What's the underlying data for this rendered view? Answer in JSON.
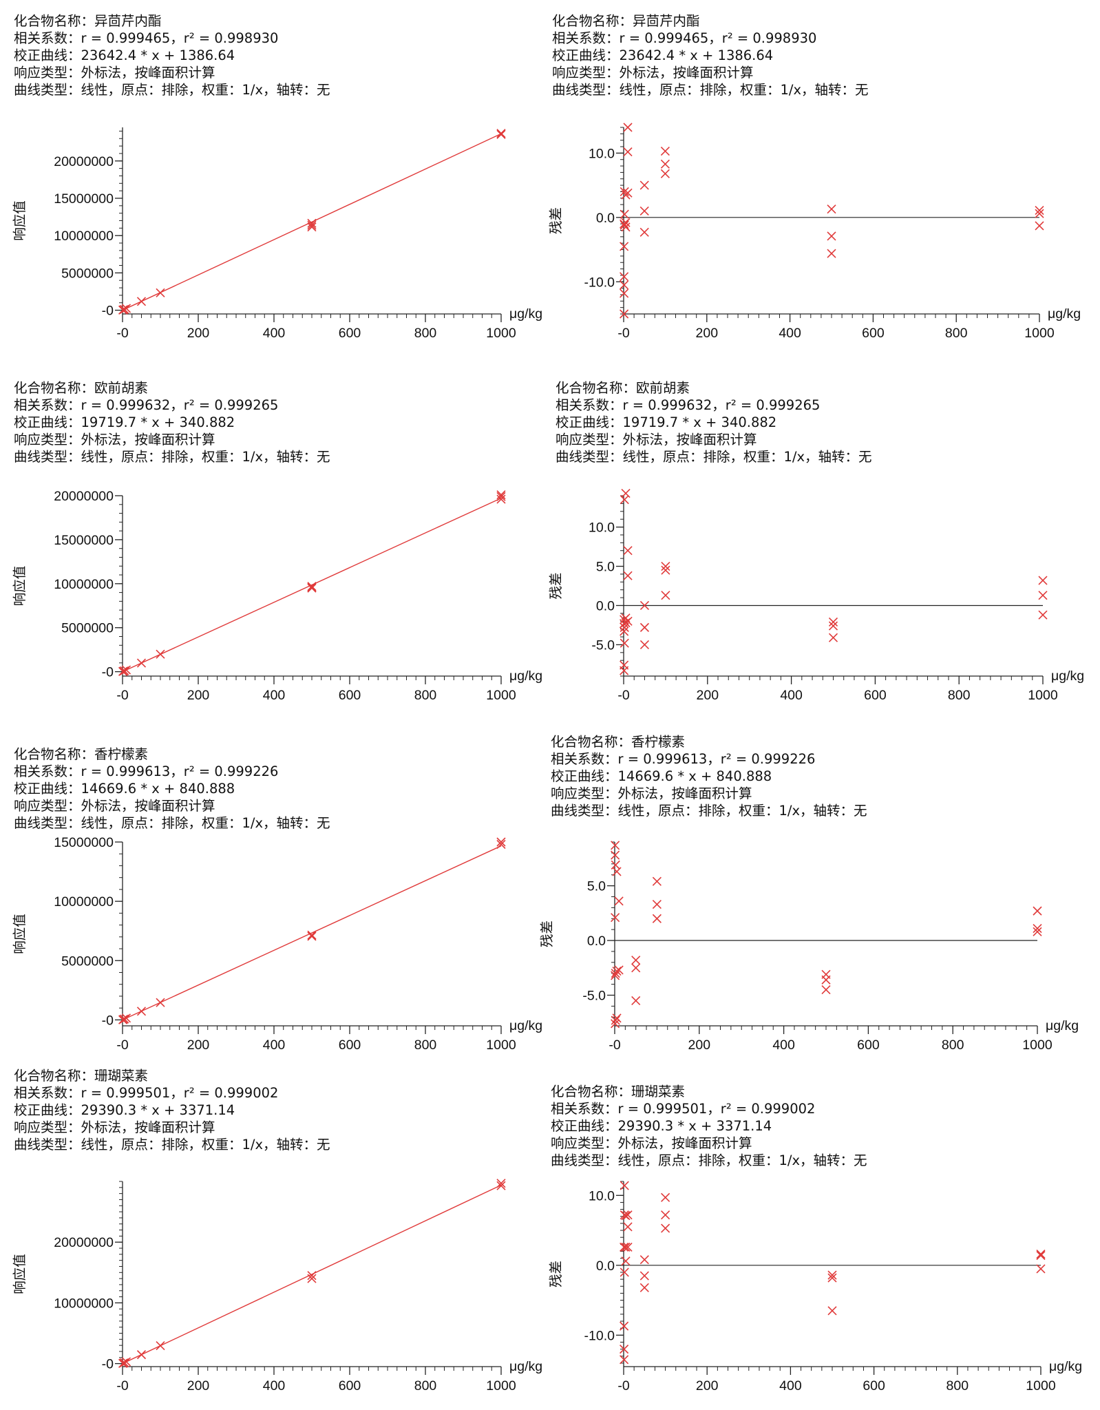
{
  "chart_data": [
    {
      "type": "scatter",
      "compound": "化合物名称：异茴芹内酯",
      "corr": "相关系数：r = 0.999465，r² = 0.998930",
      "curve": "校正曲线：23642.4 * x + 1386.64",
      "response": "响应类型：外标法，按峰面积计算",
      "curve_type": "曲线类型：线性，原点：排除，权重：1/x，轴转：无",
      "slope": 23642.4,
      "intercept": 1386.64,
      "xunit": "μg/kg",
      "ylabel": "响应值",
      "xlim": [
        0,
        1000
      ],
      "xticks": [
        "-0",
        "200",
        "400",
        "600",
        "800",
        "1000"
      ],
      "ylim": [
        -500000,
        24500000
      ],
      "yticks": [
        {
          "v": 0,
          "label": "-0"
        },
        {
          "v": 5000000,
          "label": "5000000"
        },
        {
          "v": 10000000,
          "label": "10000000"
        },
        {
          "v": 15000000,
          "label": "15000000"
        },
        {
          "v": 20000000,
          "label": "20000000"
        }
      ],
      "x": [
        1,
        2,
        5,
        10,
        50,
        100,
        500,
        500,
        500,
        1000,
        1000
      ],
      "y": [
        25000,
        50000,
        120000,
        240000,
        1180000,
        2330000,
        11400000,
        11650000,
        11150000,
        23550000,
        23700000
      ]
    },
    {
      "type": "scatter",
      "compound": "化合物名称：异茴芹内酯",
      "corr": "相关系数：r = 0.999465，r² = 0.998930",
      "curve": "校正曲线：23642.4 * x + 1386.64",
      "response": "响应类型：外标法，按峰面积计算",
      "curve_type": "曲线类型：线性，原点：排除，权重：1/x，轴转：无",
      "xunit": "μg/kg",
      "ylabel": "残差",
      "xlim": [
        0,
        1000
      ],
      "xticks": [
        "-0",
        "200",
        "400",
        "600",
        "800",
        "1000"
      ],
      "ylim": [
        -15,
        14
      ],
      "yticks": [
        {
          "v": -10,
          "label": "-10.0"
        },
        {
          "v": 0,
          "label": "0.0"
        },
        {
          "v": 10,
          "label": "10.0"
        }
      ],
      "x": [
        1,
        1,
        1,
        1,
        1,
        1,
        2,
        2,
        2,
        5,
        5,
        5,
        10,
        10,
        10,
        50,
        50,
        50,
        100,
        100,
        100,
        500,
        500,
        500,
        1000,
        1000,
        1000
      ],
      "y": [
        -15,
        -11.8,
        -10.5,
        -9.2,
        -4.5,
        -1,
        4,
        0.5,
        -1.2,
        3.5,
        -0.8,
        -1.5,
        14,
        10.2,
        3.8,
        5,
        1,
        -2.3,
        10.3,
        8.3,
        6.8,
        1.3,
        -2.9,
        -5.6,
        1.1,
        0.6,
        -1.3
      ]
    },
    {
      "type": "scatter",
      "compound": "化合物名称：欧前胡素",
      "corr": "相关系数：r = 0.999632，r² = 0.999265",
      "curve": "校正曲线：19719.7 * x + 340.882",
      "response": "响应类型：外标法，按峰面积计算",
      "curve_type": "曲线类型：线性，原点：排除，权重：1/x，轴转：无",
      "slope": 19719.7,
      "intercept": 340.882,
      "xunit": "μg/kg",
      "ylabel": "响应值",
      "xlim": [
        0,
        1000
      ],
      "xticks": [
        "-0",
        "200",
        "400",
        "600",
        "800",
        "1000"
      ],
      "ylim": [
        -500000,
        20000000
      ],
      "yticks": [
        {
          "v": 0,
          "label": "-0"
        },
        {
          "v": 5000000,
          "label": "5000000"
        },
        {
          "v": 10000000,
          "label": "10000000"
        },
        {
          "v": 15000000,
          "label": "15000000"
        },
        {
          "v": 20000000,
          "label": "20000000"
        }
      ],
      "x": [
        1,
        2,
        5,
        10,
        50,
        100,
        500,
        500,
        500,
        1000,
        1000,
        1000
      ],
      "y": [
        20000,
        40000,
        100000,
        200000,
        980000,
        1990000,
        9500000,
        9700000,
        9600000,
        19600000,
        19900000,
        20100000
      ]
    },
    {
      "type": "scatter",
      "compound": "化合物名称：欧前胡素",
      "corr": "相关系数：r = 0.999632，r² = 0.999265",
      "curve": "校正曲线：19719.7 * x + 340.882",
      "response": "响应类型：外标法，按峰面积计算",
      "curve_type": "曲线类型：线性，原点：排除，权重：1/x，轴转：无",
      "xunit": "μg/kg",
      "ylabel": "残差",
      "xlim": [
        0,
        1000
      ],
      "xticks": [
        "-0",
        "200",
        "400",
        "600",
        "800",
        "1000"
      ],
      "ylim": [
        -9,
        14
      ],
      "yticks": [
        {
          "v": -5,
          "label": "-5.0"
        },
        {
          "v": 0,
          "label": "0.0"
        },
        {
          "v": 5,
          "label": "5.0"
        },
        {
          "v": 10,
          "label": "10.0"
        }
      ],
      "x": [
        1,
        1,
        1,
        1,
        1,
        2,
        2,
        2,
        5,
        5,
        5,
        10,
        10,
        10,
        50,
        50,
        50,
        100,
        100,
        100,
        500,
        500,
        500,
        1000,
        1000,
        1000
      ],
      "y": [
        -8.3,
        -7.6,
        -3.3,
        -2.3,
        -1.8,
        13.5,
        -2.8,
        -4.8,
        14.3,
        -1.6,
        -2.2,
        7,
        3.8,
        -2,
        0,
        -2.8,
        -5,
        5,
        4.5,
        1.3,
        -2.1,
        -2.6,
        -4.1,
        3.2,
        1.3,
        -1.2
      ]
    },
    {
      "type": "scatter",
      "compound": "化合物名称：香柠檬素",
      "corr": "相关系数：r = 0.999613，r² = 0.999226",
      "curve": "校正曲线：14669.6 * x + 840.888",
      "response": "响应类型：外标法，按峰面积计算",
      "curve_type": "曲线类型：线性，原点：排除，权重：1/x，轴转：无",
      "slope": 14669.6,
      "intercept": 840.888,
      "xunit": "μg/kg",
      "ylabel": "响应值",
      "xlim": [
        0,
        1000
      ],
      "xticks": [
        "-0",
        "200",
        "400",
        "600",
        "800",
        "1000"
      ],
      "ylim": [
        -500000,
        15000000
      ],
      "yticks": [
        {
          "v": 0,
          "label": "-0"
        },
        {
          "v": 5000000,
          "label": "5000000"
        },
        {
          "v": 10000000,
          "label": "10000000"
        },
        {
          "v": 15000000,
          "label": "15000000"
        }
      ],
      "x": [
        1,
        2,
        5,
        10,
        50,
        100,
        500,
        500,
        1000,
        1000
      ],
      "y": [
        15000,
        30000,
        75000,
        150000,
        730000,
        1460000,
        7050000,
        7150000,
        14800000,
        15000000
      ]
    },
    {
      "type": "scatter",
      "compound": "化合物名称：香柠檬素",
      "corr": "相关系数：r = 0.999613，r² = 0.999226",
      "curve": "校正曲线：14669.6 * x + 840.888",
      "response": "响应类型：外标法，按峰面积计算",
      "curve_type": "曲线类型：线性，原点：排除，权重：1/x，轴转：无",
      "xunit": "μg/kg",
      "ylabel": "残差",
      "xlim": [
        0,
        1000
      ],
      "xticks": [
        "-0",
        "200",
        "400",
        "600",
        "800",
        "1000"
      ],
      "ylim": [
        -7.8,
        9
      ],
      "yticks": [
        {
          "v": -5,
          "label": "-5.0"
        },
        {
          "v": 0,
          "label": "0.0"
        },
        {
          "v": 5,
          "label": "5.0"
        }
      ],
      "x": [
        1,
        1,
        1,
        1,
        1,
        2,
        2,
        2,
        5,
        5,
        5,
        10,
        10,
        50,
        50,
        50,
        100,
        100,
        100,
        500,
        500,
        500,
        1000,
        1000,
        1000
      ],
      "y": [
        8.7,
        7.8,
        2.1,
        -3.2,
        -7.6,
        6.9,
        -3,
        -7.3,
        6.3,
        -2.8,
        -7.1,
        3.6,
        -2.7,
        -1.8,
        -2.5,
        -5.5,
        5.4,
        3.3,
        2,
        -3.1,
        -3.6,
        -4.5,
        2.7,
        1.1,
        0.8
      ]
    },
    {
      "type": "scatter",
      "compound": "化合物名称：珊瑚菜素",
      "corr": "相关系数：r = 0.999501，r² = 0.999002",
      "curve": "校正曲线：29390.3 * x + 3371.14",
      "response": "响应类型：外标法，按峰面积计算",
      "curve_type": "曲线类型：线性，原点：排除，权重：1/x，轴转：无",
      "slope": 29390.3,
      "intercept": 3371.14,
      "xunit": "μg/kg",
      "ylabel": "响应值",
      "xlim": [
        0,
        1000
      ],
      "xticks": [
        "-0",
        "200",
        "400",
        "600",
        "800",
        "1000"
      ],
      "ylim": [
        -500000,
        30000000
      ],
      "yticks": [
        {
          "v": 0,
          "label": "-0"
        },
        {
          "v": 10000000,
          "label": "10000000"
        },
        {
          "v": 20000000,
          "label": "20000000"
        }
      ],
      "x": [
        1,
        2,
        5,
        10,
        50,
        100,
        500,
        500,
        1000,
        1000
      ],
      "y": [
        30000,
        60000,
        150000,
        300000,
        1470000,
        2950000,
        14000000,
        14500000,
        29300000,
        29700000
      ]
    },
    {
      "type": "scatter",
      "compound": "化合物名称：珊瑚菜素",
      "corr": "相关系数：r = 0.999501，r² = 0.999002",
      "curve": "校正曲线：29390.3 * x + 3371.14",
      "response": "响应类型：外标法，按峰面积计算",
      "curve_type": "曲线类型：线性，原点：排除，权重：1/x，轴转：无",
      "xunit": "μg/kg",
      "ylabel": "残差",
      "xlim": [
        0,
        1000
      ],
      "xticks": [
        "-0",
        "200",
        "400",
        "600",
        "800",
        "1000"
      ],
      "ylim": [
        -14.5,
        12
      ],
      "yticks": [
        {
          "v": -10,
          "label": "-10.0"
        },
        {
          "v": 0,
          "label": "0.0"
        },
        {
          "v": 10,
          "label": "10.0"
        }
      ],
      "x": [
        1,
        1,
        1,
        1,
        2,
        2,
        2,
        5,
        5,
        5,
        10,
        10,
        10,
        50,
        50,
        50,
        100,
        100,
        100,
        500,
        500,
        500,
        1000,
        1000,
        1000
      ],
      "y": [
        -13.5,
        -12,
        -8.7,
        2.6,
        11.4,
        7.2,
        -1,
        7.1,
        2.6,
        0.6,
        7.2,
        5.5,
        2.6,
        0.8,
        -1.5,
        -3.2,
        9.7,
        7.2,
        5.3,
        -1.4,
        -1.8,
        -6.5,
        1.6,
        1.4,
        -0.5
      ]
    }
  ],
  "colors": {
    "marker": "#e03a3a",
    "fit_line": "#e03a3a",
    "axis": "#222222",
    "zero_line": "#222222"
  }
}
